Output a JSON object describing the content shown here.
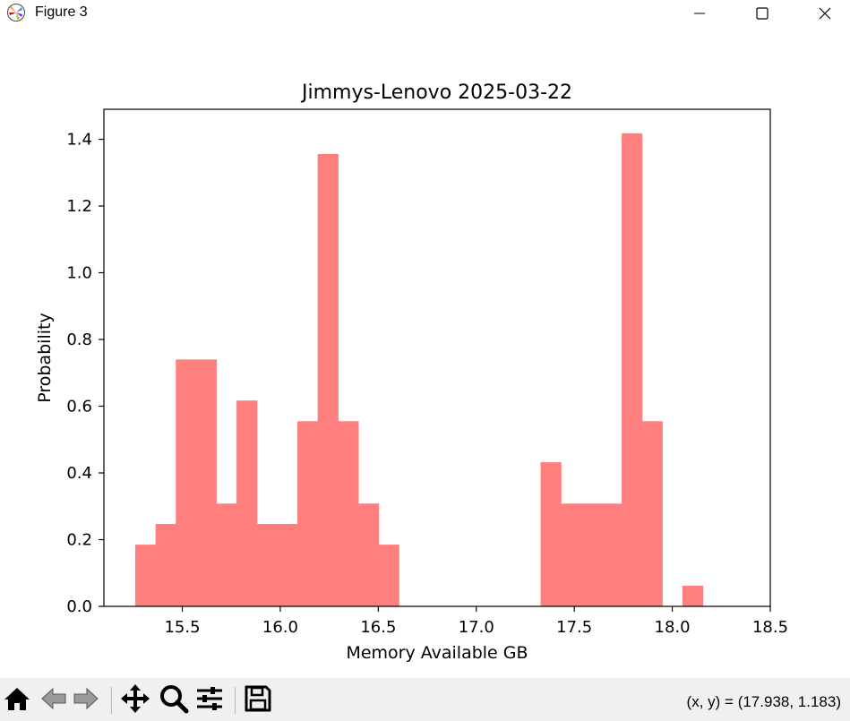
{
  "window": {
    "title": "Figure 3",
    "icons": {
      "app": "matplotlib-icon",
      "minimize": "minimize-icon",
      "maximize": "maximize-icon",
      "close": "close-icon"
    }
  },
  "toolbar": {
    "buttons": [
      {
        "name": "home-button",
        "icon": "home-icon"
      },
      {
        "name": "back-button",
        "icon": "back-arrow-icon"
      },
      {
        "name": "forward-button",
        "icon": "forward-arrow-icon"
      },
      {
        "name": "pan-button",
        "icon": "pan-icon"
      },
      {
        "name": "zoom-button",
        "icon": "zoom-icon"
      },
      {
        "name": "configure-subplots-button",
        "icon": "sliders-icon"
      },
      {
        "name": "save-button",
        "icon": "save-icon"
      }
    ],
    "coords": "(x, y) = (17.938, 1.183)"
  },
  "chart_data": {
    "type": "bar",
    "title": "Jimmys-Lenovo 2025-03-22",
    "xlabel": "Memory Available GB",
    "ylabel": "Probability",
    "xlim": [
      15.1,
      18.5
    ],
    "ylim": [
      0,
      1.49
    ],
    "xticks": [
      15.5,
      16.0,
      16.5,
      17.0,
      17.5,
      18.0,
      18.5
    ],
    "xtick_labels": [
      "15.5",
      "16.0",
      "16.5",
      "17.0",
      "17.5",
      "18.0",
      "18.5"
    ],
    "yticks": [
      0.0,
      0.2,
      0.4,
      0.6,
      0.8,
      1.0,
      1.2,
      1.4
    ],
    "ytick_labels": [
      "0.0",
      "0.2",
      "0.4",
      "0.6",
      "0.8",
      "1.0",
      "1.2",
      "1.4"
    ],
    "bin_start": 15.26,
    "bin_width": 0.1034,
    "values": [
      0.185,
      0.247,
      0.74,
      0.74,
      0.308,
      0.617,
      0.247,
      0.247,
      0.555,
      1.356,
      0.555,
      0.308,
      0.185,
      0,
      0,
      0,
      0,
      0,
      0,
      0,
      0.432,
      0.308,
      0.308,
      0.308,
      1.418,
      0.555,
      0,
      0.062
    ],
    "color": "#ff7f7f",
    "grid": false,
    "legend": false
  }
}
